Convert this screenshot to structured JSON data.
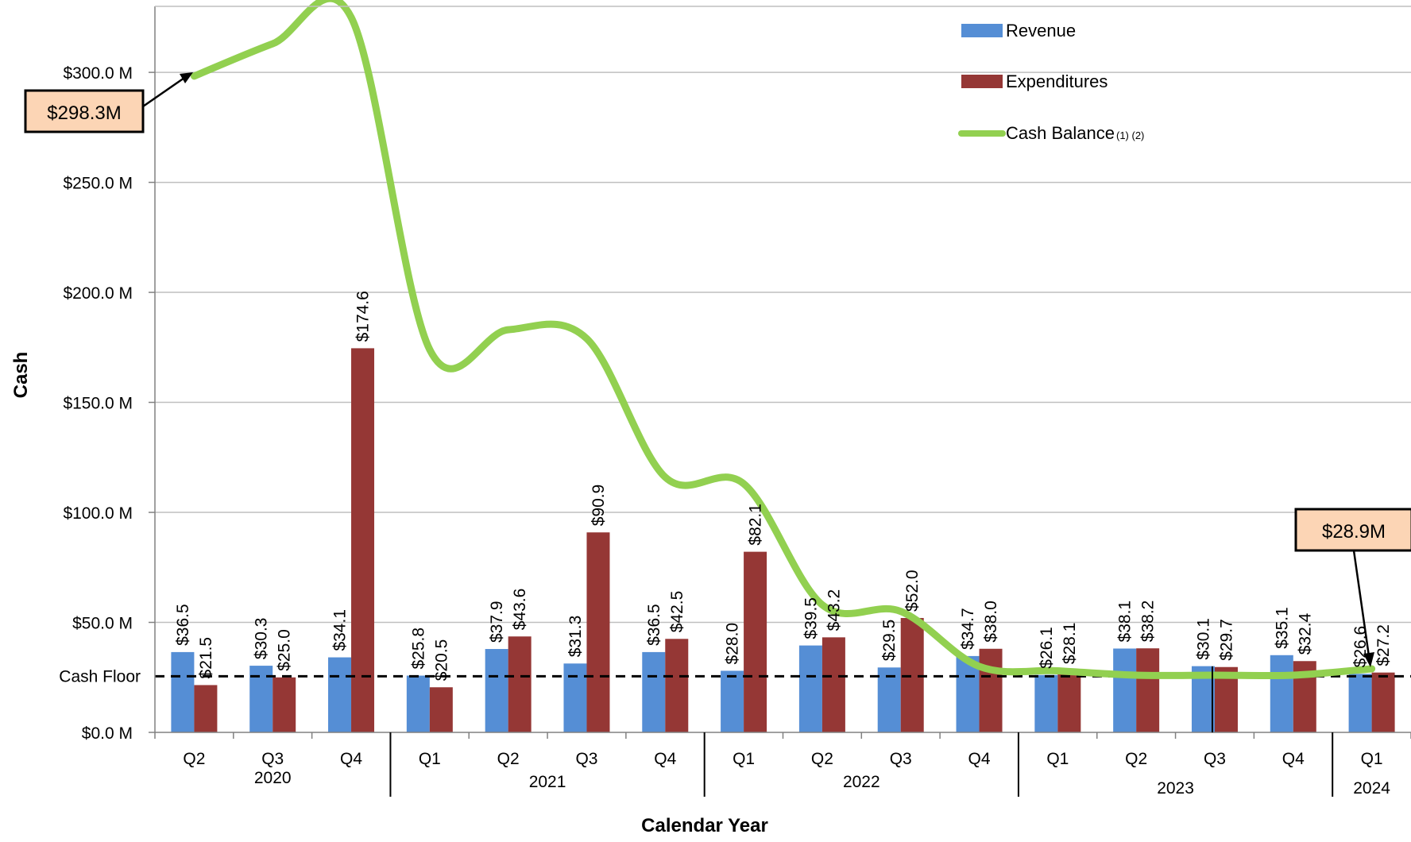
{
  "chart_data": {
    "type": "bar",
    "categories": [
      "Q2",
      "Q3",
      "Q4",
      "Q1",
      "Q2",
      "Q3",
      "Q4",
      "Q1",
      "Q2",
      "Q3",
      "Q4",
      "Q1",
      "Q2",
      "Q3",
      "Q4",
      "Q1"
    ],
    "year_groups": [
      {
        "label": "2020",
        "start": 0,
        "end": 2
      },
      {
        "label": "2021",
        "start": 3,
        "end": 6
      },
      {
        "label": "2022",
        "start": 7,
        "end": 10
      },
      {
        "label": "2023",
        "start": 11,
        "end": 14
      },
      {
        "label": "2024",
        "start": 15,
        "end": 15
      }
    ],
    "series": [
      {
        "name": "Revenue",
        "type": "bar",
        "color": "#558ED5",
        "values": [
          36.5,
          30.3,
          34.1,
          25.8,
          37.9,
          31.3,
          36.5,
          28.0,
          39.5,
          29.5,
          34.7,
          26.1,
          38.1,
          30.1,
          35.1,
          26.6
        ],
        "labels": [
          "$36.5",
          "$30.3",
          "$34.1",
          "$25.8",
          "$37.9",
          "$31.3",
          "$36.5",
          "$28.0",
          "$39.5",
          "$29.5",
          "$34.7",
          "$26.1",
          "$38.1",
          "$30.1",
          "$35.1",
          "$26.6"
        ]
      },
      {
        "name": "Expenditures",
        "type": "bar",
        "color": "#953735",
        "values": [
          21.5,
          25.0,
          174.6,
          20.5,
          43.6,
          90.9,
          42.5,
          82.1,
          43.2,
          52.0,
          38.0,
          28.1,
          38.2,
          29.7,
          32.4,
          27.2
        ],
        "labels": [
          "$21.5",
          "$25.0",
          "$174.6",
          "$20.5",
          "$43.6",
          "$90.9",
          "$42.5",
          "$82.1",
          "$43.2",
          "$52.0",
          "$38.0",
          "$28.1",
          "$38.2",
          "$29.7",
          "$32.4",
          "$27.2"
        ]
      },
      {
        "name": "Cash Balance",
        "name_suffix": "(1) (2)",
        "type": "line",
        "color": "#92D050",
        "values": [
          298.3,
          313,
          325,
          174,
          183,
          179,
          116,
          113,
          58,
          55,
          30,
          28,
          26,
          26,
          26,
          28.9
        ]
      }
    ],
    "ylabel": "Cash",
    "xlabel": "Calendar Year",
    "ylim": [
      0,
      330
    ],
    "y_ticks": [
      0,
      50,
      100,
      150,
      200,
      250,
      300
    ],
    "y_tick_labels": [
      "$0.0 M",
      "$50.0 M",
      "$100.0 M",
      "$150.0 M",
      "$200.0 M",
      "$250.0 M",
      "$300.0 M"
    ],
    "cash_floor": {
      "value": 25.5,
      "label": "Cash Floor"
    },
    "callouts": [
      {
        "text": "$298.3M",
        "point_index": 0
      },
      {
        "text": "$28.9M",
        "point_index": 15
      }
    ],
    "legend_position": "top-right",
    "grid": true
  }
}
